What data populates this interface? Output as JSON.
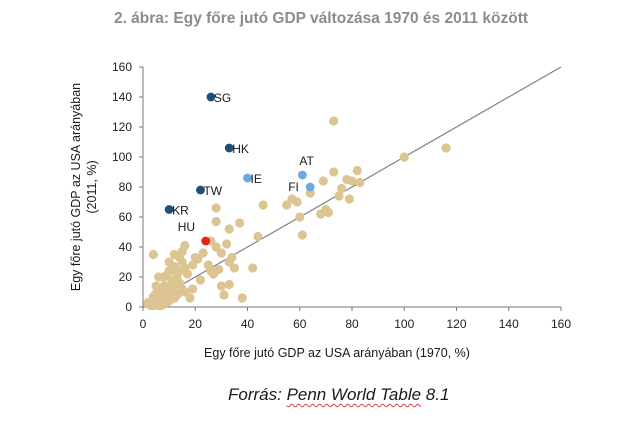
{
  "chart_data": {
    "type": "scatter",
    "title": "2. ábra: Egy főre jutó GDP változása 1970 és 2011 között",
    "xlabel": "Egy főre jutó GDP az USA arányában (1970, %)",
    "ylabel_lines": [
      "Egy főre jutó GDP az USA arányában",
      "(2011, %)"
    ],
    "xlim": [
      0,
      160
    ],
    "ylim": [
      0,
      160
    ],
    "xticks": [
      0,
      20,
      40,
      60,
      80,
      100,
      120,
      140,
      160
    ],
    "yticks": [
      0,
      20,
      40,
      60,
      80,
      100,
      120,
      140,
      160
    ],
    "grid": false,
    "reference_line": {
      "from": [
        0,
        0
      ],
      "to": [
        160,
        160
      ],
      "color": "#808080"
    },
    "colors": {
      "others": "#dcc592",
      "dark_blue": "#1f4e79",
      "light_blue": "#6fa8dc",
      "red": "#e8231a"
    },
    "labeled_points": [
      {
        "label": "SG",
        "x": 26,
        "y": 140,
        "color": "#1f4e79"
      },
      {
        "label": "HK",
        "x": 33,
        "y": 106,
        "color": "#1f4e79"
      },
      {
        "label": "IE",
        "x": 40,
        "y": 86,
        "color": "#6fa8dc"
      },
      {
        "label": "AT",
        "x": 61,
        "y": 88,
        "color": "#6fa8dc"
      },
      {
        "label": "FI",
        "x": 64,
        "y": 80,
        "color": "#6fa8dc"
      },
      {
        "label": "TW",
        "x": 22,
        "y": 78,
        "color": "#1f4e79"
      },
      {
        "label": "KR",
        "x": 10,
        "y": 65,
        "color": "#1f4e79"
      },
      {
        "label": "HU",
        "x": 24,
        "y": 44,
        "color": "#e8231a"
      }
    ],
    "other_points": [
      [
        73,
        124
      ],
      [
        100,
        100
      ],
      [
        116,
        106
      ],
      [
        82,
        91
      ],
      [
        73,
        90
      ],
      [
        80,
        84
      ],
      [
        83,
        83
      ],
      [
        78,
        85
      ],
      [
        69,
        84
      ],
      [
        76,
        79
      ],
      [
        75,
        74
      ],
      [
        79,
        72
      ],
      [
        64,
        76
      ],
      [
        70,
        65
      ],
      [
        68,
        62
      ],
      [
        71,
        63
      ],
      [
        60,
        60
      ],
      [
        59,
        70
      ],
      [
        55,
        68
      ],
      [
        57,
        72
      ],
      [
        61,
        48
      ],
      [
        46,
        68
      ],
      [
        44,
        47
      ],
      [
        37,
        56
      ],
      [
        33,
        52
      ],
      [
        28,
        66
      ],
      [
        28,
        57
      ],
      [
        34,
        33
      ],
      [
        33,
        30
      ],
      [
        35,
        26
      ],
      [
        42,
        26
      ],
      [
        30,
        36
      ],
      [
        32,
        42
      ],
      [
        26,
        44
      ],
      [
        28,
        40
      ],
      [
        25,
        28
      ],
      [
        27,
        22
      ],
      [
        26,
        24
      ],
      [
        29,
        25
      ],
      [
        30,
        14
      ],
      [
        33,
        15
      ],
      [
        31,
        8
      ],
      [
        38,
        6
      ],
      [
        23,
        36
      ],
      [
        22,
        18
      ],
      [
        21,
        32
      ],
      [
        20,
        33
      ],
      [
        19,
        28
      ],
      [
        19,
        12
      ],
      [
        17,
        22
      ],
      [
        18,
        6
      ],
      [
        16,
        41
      ],
      [
        15,
        37
      ],
      [
        14,
        33
      ],
      [
        15,
        30
      ],
      [
        16,
        26
      ],
      [
        14,
        24
      ],
      [
        12,
        27
      ],
      [
        13,
        22
      ],
      [
        13,
        20
      ],
      [
        11,
        18
      ],
      [
        10,
        30
      ],
      [
        12,
        15
      ],
      [
        14,
        16
      ],
      [
        15,
        12
      ],
      [
        16,
        10
      ],
      [
        12,
        10
      ],
      [
        11,
        12
      ],
      [
        10,
        14
      ],
      [
        9,
        21
      ],
      [
        8,
        20
      ],
      [
        7,
        12
      ],
      [
        8,
        10
      ],
      [
        6,
        8
      ],
      [
        7,
        6
      ],
      [
        5,
        9
      ],
      [
        4,
        7
      ],
      [
        5,
        5
      ],
      [
        4,
        4
      ],
      [
        3,
        3
      ],
      [
        5,
        2
      ],
      [
        6,
        2
      ],
      [
        7,
        3
      ],
      [
        8,
        5
      ],
      [
        9,
        7
      ],
      [
        10,
        4
      ],
      [
        11,
        6
      ],
      [
        3,
        2
      ],
      [
        2,
        3
      ],
      [
        4,
        2
      ],
      [
        6,
        4
      ],
      [
        9,
        3
      ],
      [
        12,
        6
      ],
      [
        13,
        8
      ],
      [
        8,
        14
      ],
      [
        5,
        14
      ],
      [
        6,
        20
      ],
      [
        4,
        35
      ],
      [
        10,
        24
      ],
      [
        12,
        35
      ],
      [
        3,
        1
      ],
      [
        4,
        1
      ],
      [
        6,
        1
      ],
      [
        7,
        1
      ],
      [
        2,
        2
      ],
      [
        5,
        3
      ],
      [
        8,
        2
      ]
    ]
  },
  "source": {
    "prefix": "Forrás: ",
    "squiggly": "Penn World Table",
    "suffix": " 8.1"
  }
}
